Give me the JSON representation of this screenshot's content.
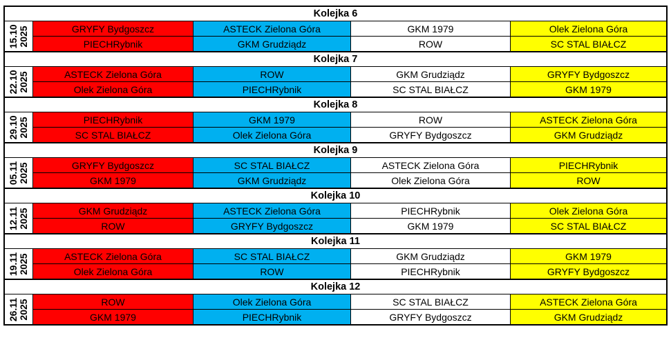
{
  "colors": {
    "column_1": "#ff0000",
    "column_2": "#00b0f0",
    "column_3": "#ffffff",
    "column_4": "#ffff00"
  },
  "rounds": [
    {
      "title": "Kolejka 6",
      "date_day": "15.10",
      "date_year": "2025",
      "rows": [
        [
          "GRYFY Bydgoszcz",
          "ASTECK Zielona Góra",
          "GKM 1979",
          "Olek Zielona Góra"
        ],
        [
          "PIECHRybnik",
          "GKM Grudziądz",
          "ROW",
          "SC STAL BIAŁCZ"
        ]
      ]
    },
    {
      "title": "Kolejka 7",
      "date_day": "22.10",
      "date_year": "2025",
      "rows": [
        [
          "ASTECK Zielona Góra",
          "ROW",
          "GKM Grudziądz",
          "GRYFY Bydgoszcz"
        ],
        [
          "Olek Zielona Góra",
          "PIECHRybnik",
          "SC STAL BIAŁCZ",
          "GKM 1979"
        ]
      ]
    },
    {
      "title": "Kolejka 8",
      "date_day": "29.10",
      "date_year": "2025",
      "rows": [
        [
          "PIECHRybnik",
          "GKM 1979",
          "ROW",
          "ASTECK Zielona Góra"
        ],
        [
          "SC STAL BIAŁCZ",
          "Olek Zielona Góra",
          "GRYFY Bydgoszcz",
          "GKM Grudziądz"
        ]
      ]
    },
    {
      "title": "Kolejka 9",
      "date_day": "05.11",
      "date_year": "2025",
      "rows": [
        [
          "GRYFY Bydgoszcz",
          "SC STAL BIAŁCZ",
          "ASTECK Zielona Góra",
          "PIECHRybnik"
        ],
        [
          "GKM 1979",
          "GKM Grudziądz",
          "Olek Zielona Góra",
          "ROW"
        ]
      ]
    },
    {
      "title": "Kolejka 10",
      "date_day": "12.11",
      "date_year": "2025",
      "rows": [
        [
          "GKM Grudziądz",
          "ASTECK Zielona Góra",
          "PIECHRybnik",
          "Olek Zielona Góra"
        ],
        [
          "ROW",
          "GRYFY Bydgoszcz",
          "GKM 1979",
          "SC STAL BIAŁCZ"
        ]
      ]
    },
    {
      "title": "Kolejka 11",
      "date_day": "19.11",
      "date_year": "2025",
      "rows": [
        [
          "ASTECK Zielona Góra",
          "SC STAL BIAŁCZ",
          "GKM Grudziądz",
          "GKM 1979"
        ],
        [
          "Olek Zielona Góra",
          "ROW",
          "PIECHRybnik",
          "GRYFY Bydgoszcz"
        ]
      ]
    },
    {
      "title": "Kolejka 12",
      "date_day": "26.11",
      "date_year": "2025",
      "rows": [
        [
          "ROW",
          "Olek Zielona Góra",
          "SC STAL BIAŁCZ",
          "ASTECK Zielona Góra"
        ],
        [
          "GKM 1979",
          "PIECHRybnik",
          "GRYFY Bydgoszcz",
          "GKM Grudziądz"
        ]
      ]
    }
  ]
}
